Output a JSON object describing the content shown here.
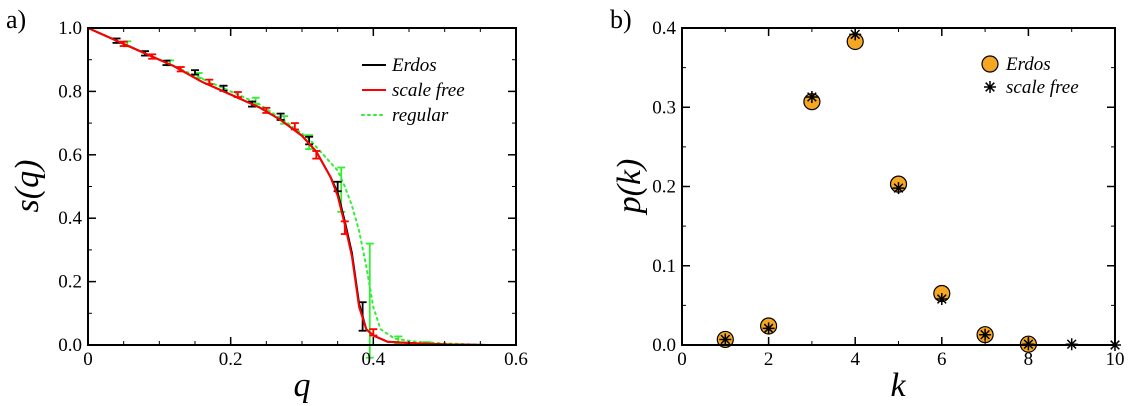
{
  "chart_data": [
    {
      "panel_label": "a)",
      "type": "line",
      "xlabel": "q",
      "ylabel": "s(q)",
      "xlim": [
        0,
        0.6
      ],
      "ylim": [
        0,
        1.0
      ],
      "xticks": [
        0,
        0.2,
        0.4,
        0.6
      ],
      "xtick_labels": [
        "0",
        "0.2",
        "0.4",
        "0.6"
      ],
      "yticks": [
        0,
        0.2,
        0.4,
        0.6,
        0.8,
        1.0
      ],
      "ytick_labels": [
        "0.0",
        "0.2",
        "0.4",
        "0.6",
        "0.8",
        "1.0"
      ],
      "legend_position": "top-right",
      "series": [
        {
          "name": "Erdos",
          "style": "solid",
          "color": "#000000",
          "x": [
            0,
            0.04,
            0.08,
            0.12,
            0.16,
            0.2,
            0.24,
            0.27,
            0.3,
            0.32,
            0.34,
            0.35,
            0.36,
            0.37,
            0.38,
            0.39,
            0.4,
            0.42,
            0.46,
            0.5,
            0.56
          ],
          "y": [
            1.0,
            0.96,
            0.92,
            0.88,
            0.83,
            0.79,
            0.75,
            0.71,
            0.66,
            0.61,
            0.53,
            0.48,
            0.39,
            0.29,
            0.13,
            0.05,
            0.03,
            0.01,
            0.005,
            0.002,
            0.0
          ],
          "error_bars": [
            {
              "x": 0.04,
              "y": 0.96,
              "err": 0.007
            },
            {
              "x": 0.08,
              "y": 0.92,
              "err": 0.007
            },
            {
              "x": 0.11,
              "y": 0.89,
              "err": 0.007
            },
            {
              "x": 0.15,
              "y": 0.86,
              "err": 0.007
            },
            {
              "x": 0.19,
              "y": 0.81,
              "err": 0.008
            },
            {
              "x": 0.23,
              "y": 0.76,
              "err": 0.008
            },
            {
              "x": 0.27,
              "y": 0.72,
              "err": 0.01
            },
            {
              "x": 0.31,
              "y": 0.645,
              "err": 0.012
            },
            {
              "x": 0.35,
              "y": 0.5,
              "err": 0.015
            },
            {
              "x": 0.385,
              "y": 0.09,
              "err": 0.045
            }
          ]
        },
        {
          "name": "scale free",
          "style": "solid",
          "color": "#ff0000",
          "x": [
            0,
            0.04,
            0.08,
            0.12,
            0.16,
            0.2,
            0.24,
            0.27,
            0.3,
            0.32,
            0.34,
            0.35,
            0.36,
            0.37,
            0.38,
            0.39,
            0.4,
            0.42,
            0.46,
            0.5,
            0.56
          ],
          "y": [
            1.0,
            0.96,
            0.92,
            0.88,
            0.83,
            0.79,
            0.75,
            0.71,
            0.66,
            0.61,
            0.53,
            0.47,
            0.38,
            0.28,
            0.12,
            0.05,
            0.03,
            0.01,
            0.005,
            0.002,
            0.0
          ],
          "error_bars": [
            {
              "x": 0.05,
              "y": 0.95,
              "err": 0.007
            },
            {
              "x": 0.09,
              "y": 0.91,
              "err": 0.007
            },
            {
              "x": 0.13,
              "y": 0.87,
              "err": 0.007
            },
            {
              "x": 0.17,
              "y": 0.83,
              "err": 0.007
            },
            {
              "x": 0.21,
              "y": 0.79,
              "err": 0.008
            },
            {
              "x": 0.25,
              "y": 0.74,
              "err": 0.008
            },
            {
              "x": 0.29,
              "y": 0.69,
              "err": 0.01
            },
            {
              "x": 0.32,
              "y": 0.6,
              "err": 0.012
            },
            {
              "x": 0.36,
              "y": 0.37,
              "err": 0.02
            },
            {
              "x": 0.4,
              "y": 0.04,
              "err": 0.01
            }
          ]
        },
        {
          "name": "regular",
          "style": "dotted",
          "color": "#33ee33",
          "x": [
            0,
            0.05,
            0.1,
            0.15,
            0.2,
            0.24,
            0.28,
            0.31,
            0.33,
            0.35,
            0.36,
            0.37,
            0.38,
            0.39,
            0.4,
            0.41,
            0.43,
            0.46,
            0.5,
            0.56
          ],
          "y": [
            1.0,
            0.95,
            0.9,
            0.85,
            0.8,
            0.76,
            0.7,
            0.65,
            0.6,
            0.55,
            0.5,
            0.44,
            0.36,
            0.25,
            0.12,
            0.05,
            0.02,
            0.01,
            0.005,
            0.0
          ],
          "error_bars": [
            {
              "x": 0.055,
              "y": 0.95,
              "err": 0.008
            },
            {
              "x": 0.115,
              "y": 0.89,
              "err": 0.008
            },
            {
              "x": 0.155,
              "y": 0.85,
              "err": 0.008
            },
            {
              "x": 0.235,
              "y": 0.77,
              "err": 0.01
            },
            {
              "x": 0.275,
              "y": 0.71,
              "err": 0.012
            },
            {
              "x": 0.31,
              "y": 0.64,
              "err": 0.022
            },
            {
              "x": 0.355,
              "y": 0.49,
              "err": 0.07
            },
            {
              "x": 0.395,
              "y": 0.14,
              "err": 0.18
            },
            {
              "x": 0.435,
              "y": 0.015,
              "err": 0.012
            },
            {
              "x": 0.475,
              "y": 0.005,
              "err": 0.004
            }
          ]
        }
      ]
    },
    {
      "panel_label": "b)",
      "type": "scatter",
      "xlabel": "k",
      "ylabel": "p(k)",
      "xlim": [
        0,
        10
      ],
      "ylim": [
        0,
        0.4
      ],
      "xticks": [
        0,
        2,
        4,
        6,
        8,
        10
      ],
      "xtick_labels": [
        "0",
        "2",
        "4",
        "6",
        "8",
        "10"
      ],
      "yticks": [
        0,
        0.1,
        0.2,
        0.3,
        0.4
      ],
      "ytick_labels": [
        "0.0",
        "0.1",
        "0.2",
        "0.3",
        "0.4"
      ],
      "legend_position": "top-right",
      "series": [
        {
          "name": "Erdos",
          "marker": "circle",
          "color": "#f5a623",
          "x": [
            1,
            2,
            3,
            4,
            5,
            6,
            7,
            8
          ],
          "y": [
            0.007,
            0.024,
            0.307,
            0.383,
            0.203,
            0.065,
            0.013,
            0.001
          ]
        },
        {
          "name": "scale free",
          "marker": "asterisk",
          "color": "#000000",
          "x": [
            1,
            2,
            3,
            4,
            5,
            6,
            7,
            8,
            9,
            10
          ],
          "y": [
            0.007,
            0.021,
            0.313,
            0.392,
            0.198,
            0.058,
            0.013,
            0.001,
            0.001,
            0.0
          ]
        }
      ]
    }
  ]
}
